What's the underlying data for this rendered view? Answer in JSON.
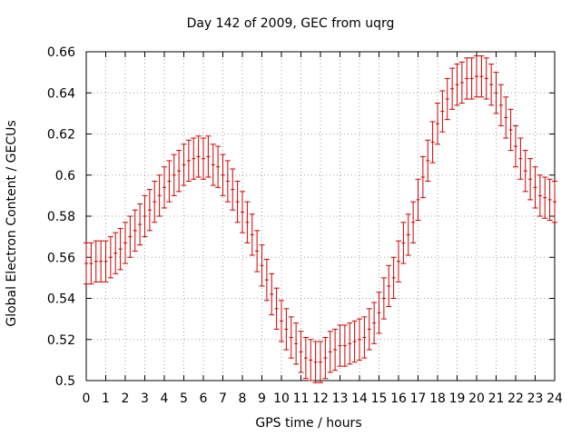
{
  "chart_data": {
    "type": "line",
    "title": "Day 142 of 2009, GEC from uqrg",
    "xlabel": "GPS time / hours",
    "ylabel": "Global Electron Content / GECUs",
    "xlim": [
      0,
      24
    ],
    "ylim": [
      0.5,
      0.66
    ],
    "xticks": [
      0,
      1,
      2,
      3,
      4,
      5,
      6,
      7,
      8,
      9,
      10,
      11,
      12,
      13,
      14,
      15,
      16,
      17,
      18,
      19,
      20,
      21,
      22,
      23,
      24
    ],
    "yticks": [
      0.5,
      0.52,
      0.54,
      0.56,
      0.58,
      0.6,
      0.62,
      0.64,
      0.66
    ],
    "ytick_labels": [
      "0.5",
      "0.52",
      "0.54",
      "0.56",
      "0.58",
      "0.6",
      "0.62",
      "0.64",
      "0.66"
    ],
    "grid": true,
    "legend": "none",
    "color": "#cc0000",
    "error_bar": 0.01,
    "series": [
      {
        "name": "GEC",
        "x": [
          0,
          0.25,
          0.5,
          0.75,
          1,
          1.25,
          1.5,
          1.75,
          2,
          2.25,
          2.5,
          2.75,
          3,
          3.25,
          3.5,
          3.75,
          4,
          4.25,
          4.5,
          4.75,
          5,
          5.25,
          5.5,
          5.75,
          6,
          6.25,
          6.5,
          6.75,
          7,
          7.25,
          7.5,
          7.75,
          8,
          8.25,
          8.5,
          8.75,
          9,
          9.25,
          9.5,
          9.75,
          10,
          10.25,
          10.5,
          10.75,
          11,
          11.25,
          11.5,
          11.75,
          12,
          12.25,
          12.5,
          12.75,
          13,
          13.25,
          13.5,
          13.75,
          14,
          14.25,
          14.5,
          14.75,
          15,
          15.25,
          15.5,
          15.75,
          16,
          16.25,
          16.5,
          16.75,
          17,
          17.25,
          17.5,
          17.75,
          18,
          18.25,
          18.5,
          18.75,
          19,
          19.25,
          19.5,
          19.75,
          20,
          20.25,
          20.5,
          20.75,
          21,
          21.25,
          21.5,
          21.75,
          22,
          22.25,
          22.5,
          22.75,
          23,
          23.25,
          23.5,
          23.75,
          24
        ],
        "values": [
          0.557,
          0.557,
          0.558,
          0.558,
          0.558,
          0.56,
          0.562,
          0.564,
          0.567,
          0.57,
          0.573,
          0.576,
          0.58,
          0.583,
          0.587,
          0.59,
          0.594,
          0.597,
          0.6,
          0.602,
          0.605,
          0.607,
          0.608,
          0.609,
          0.608,
          0.609,
          0.605,
          0.604,
          0.6,
          0.597,
          0.593,
          0.587,
          0.582,
          0.577,
          0.571,
          0.563,
          0.556,
          0.549,
          0.542,
          0.535,
          0.529,
          0.525,
          0.521,
          0.518,
          0.514,
          0.511,
          0.51,
          0.509,
          0.509,
          0.511,
          0.514,
          0.515,
          0.517,
          0.517,
          0.518,
          0.519,
          0.52,
          0.521,
          0.525,
          0.528,
          0.533,
          0.54,
          0.546,
          0.55,
          0.558,
          0.567,
          0.571,
          0.577,
          0.588,
          0.599,
          0.607,
          0.616,
          0.625,
          0.631,
          0.637,
          0.642,
          0.644,
          0.645,
          0.647,
          0.647,
          0.648,
          0.648,
          0.647,
          0.644,
          0.64,
          0.634,
          0.628,
          0.622,
          0.614,
          0.608,
          0.602,
          0.598,
          0.594,
          0.59,
          0.589,
          0.588,
          0.587
        ]
      }
    ]
  }
}
